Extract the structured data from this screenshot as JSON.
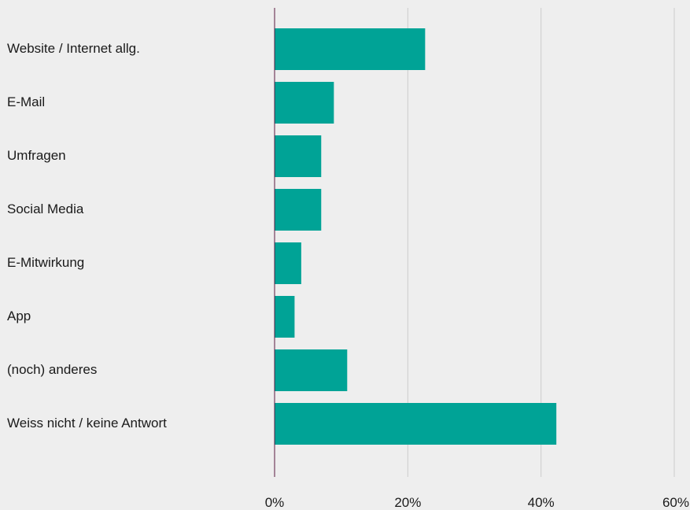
{
  "chart_data": {
    "type": "bar",
    "orientation": "horizontal",
    "categories": [
      "Website / Internet allg.",
      "E-Mail",
      "Umfragen",
      "Social Media",
      "E-Mitwirkung",
      "App",
      "(noch) anderes",
      "Weiss nicht / keine Antwort"
    ],
    "values": [
      22.6,
      8.9,
      7.0,
      7.0,
      4.0,
      3.0,
      10.9,
      42.3
    ],
    "xlim": [
      0,
      60
    ],
    "xticks": [
      0,
      20,
      40,
      60
    ],
    "xtick_labels": [
      "0%",
      "20%",
      "40%",
      "60%"
    ],
    "title": "",
    "xlabel": "",
    "ylabel": "",
    "grid": "vertical",
    "legend": "none",
    "colors": {
      "bar": "#00a396",
      "axis": "#5a1a40",
      "grid": "#cccccc",
      "background": "#eeeeee"
    }
  }
}
